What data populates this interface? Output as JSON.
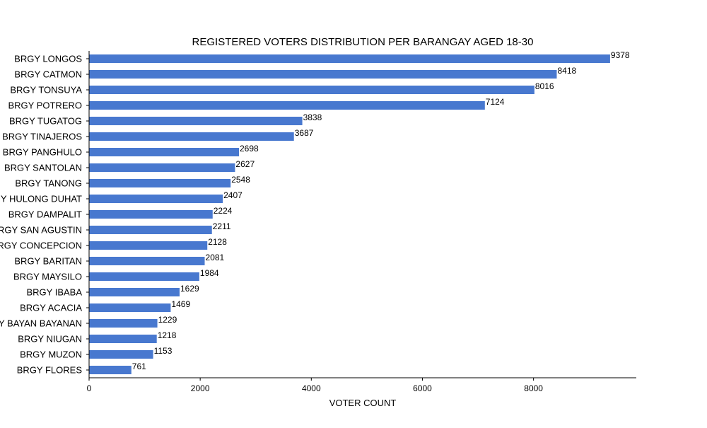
{
  "chart_data": {
    "type": "bar",
    "orientation": "horizontal",
    "title": "REGISTERED VOTERS DISTRIBUTION PER BARANGAY AGED 18-30",
    "xlabel": "VOTER COUNT",
    "ylabel": "",
    "xlim": [
      0,
      9850
    ],
    "xticks": [
      0,
      2000,
      4000,
      6000,
      8000
    ],
    "grid": false,
    "bar_color": "#4878cf",
    "categories": [
      "BRGY LONGOS",
      "BRGY CATMON",
      "BRGY TONSUYA",
      "BRGY POTRERO",
      "BRGY TUGATOG",
      "BRGY TINAJEROS",
      "BRGY PANGHULO",
      "BRGY SANTOLAN",
      "BRGY TANONG",
      "BRGY HULONG DUHAT",
      "BRGY DAMPALIT",
      "BRGY SAN AGUSTIN",
      "BRGY CONCEPCION",
      "BRGY BARITAN",
      "BRGY MAYSILO",
      "BRGY IBABA",
      "BRGY ACACIA",
      "BRGY BAYAN BAYANAN",
      "BRGY NIUGAN",
      "BRGY MUZON",
      "BRGY FLORES"
    ],
    "values": [
      9378,
      8418,
      8016,
      7124,
      3838,
      3687,
      2698,
      2627,
      2548,
      2407,
      2224,
      2211,
      2128,
      2081,
      1984,
      1629,
      1469,
      1229,
      1218,
      1153,
      761
    ]
  }
}
